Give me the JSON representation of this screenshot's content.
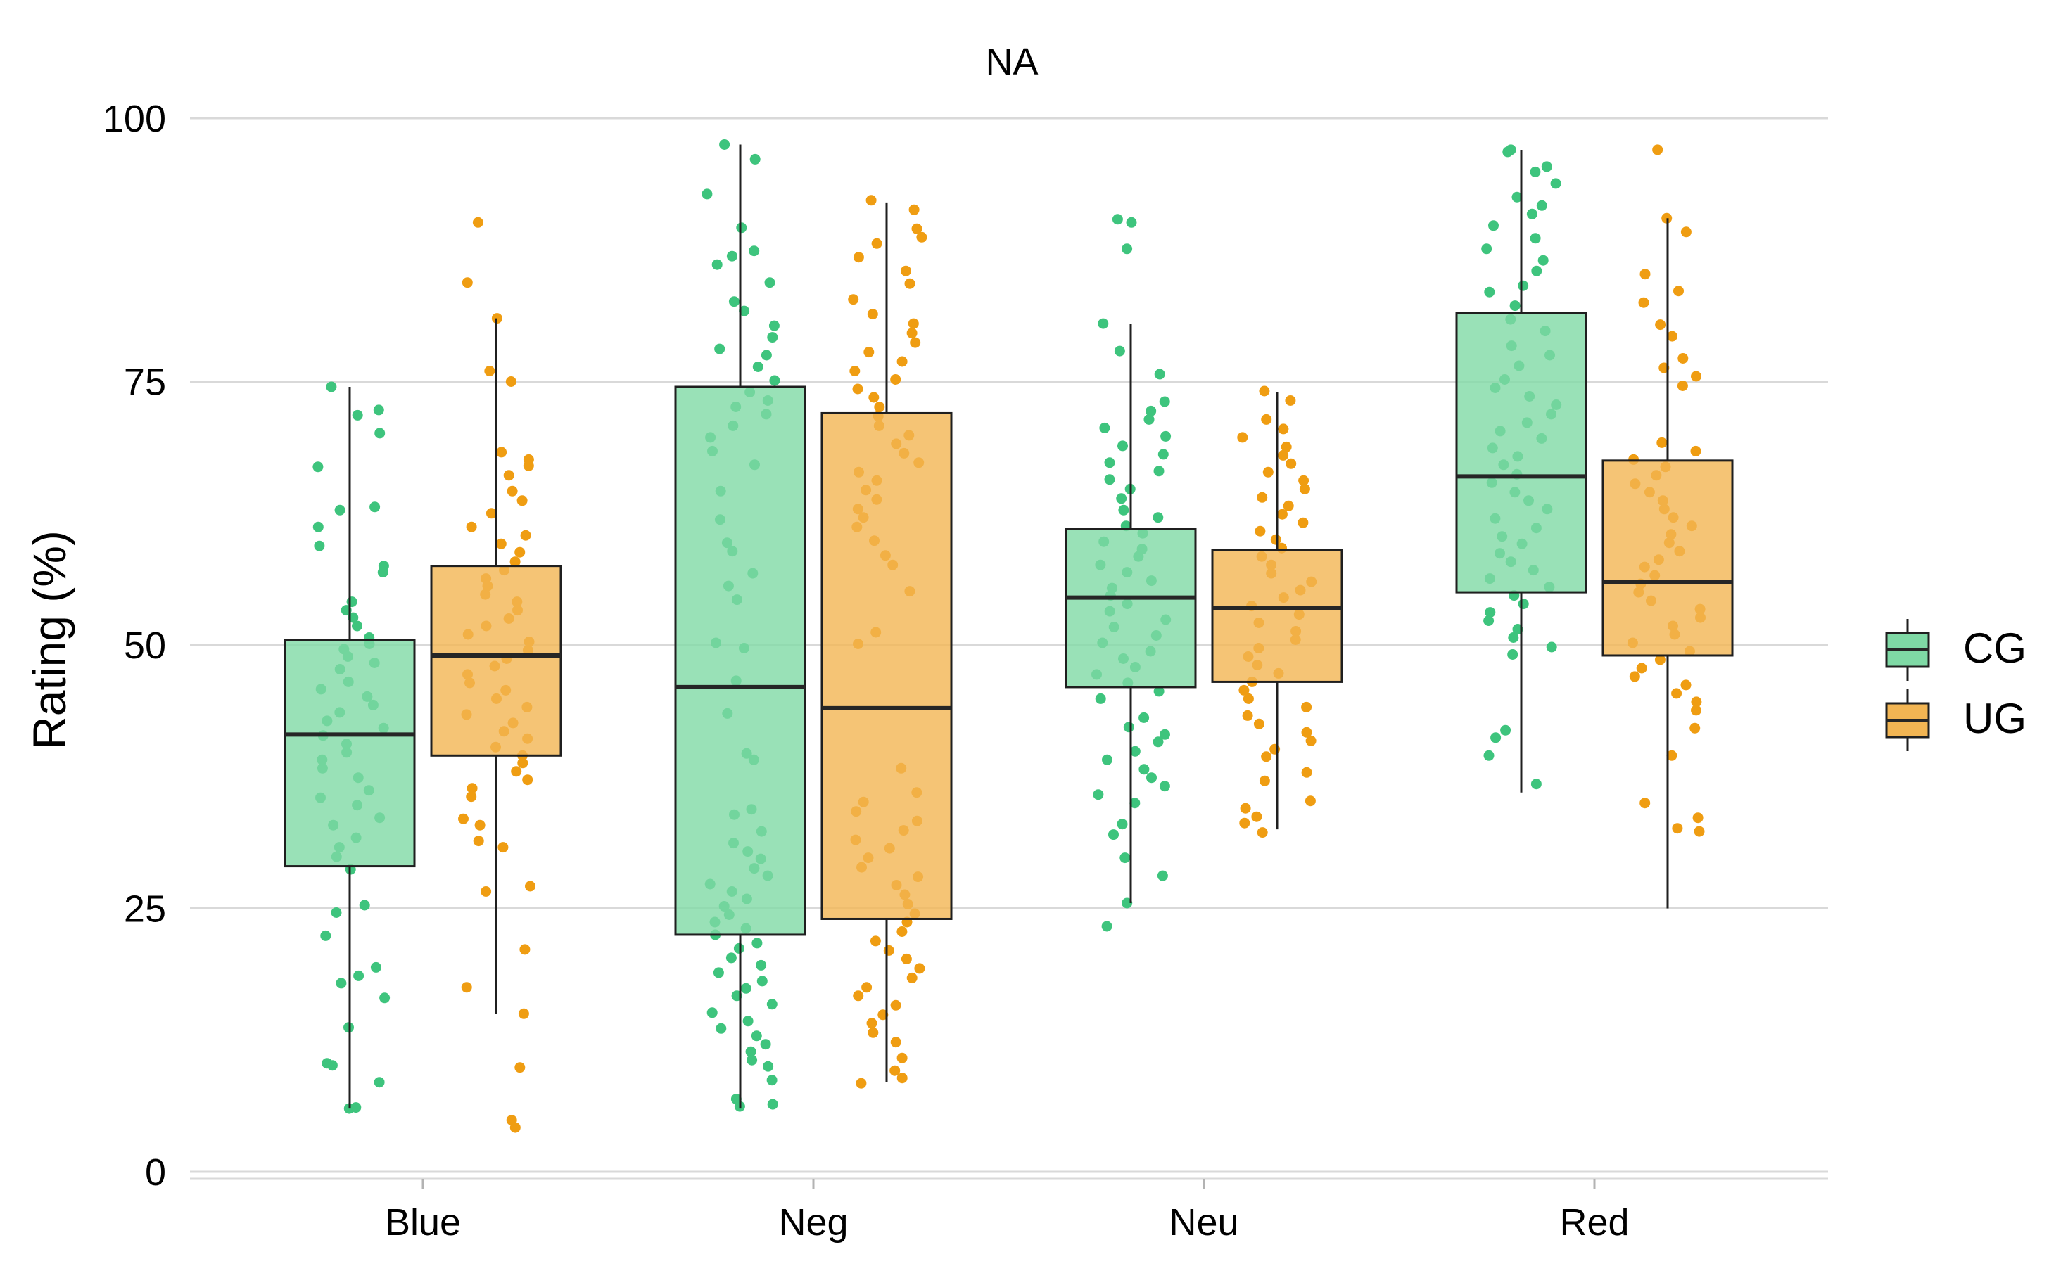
{
  "chart_data": {
    "type": "boxplot",
    "title": "NA",
    "xlabel": "",
    "ylabel": "Rating (%)",
    "ylim": [
      0,
      100
    ],
    "yticks": [
      0,
      25,
      50,
      75,
      100
    ],
    "grid": true,
    "legend_position": "right",
    "categories": [
      "Blue",
      "Neg",
      "Neu",
      "Red"
    ],
    "series": [
      {
        "name": "CG",
        "fill": "#7fd9a5",
        "point_color": "#3ec47d",
        "boxes": [
          {
            "category": "Blue",
            "min": 6,
            "q1": 29,
            "median": 41.5,
            "q3": 50.5,
            "max": 74.5
          },
          {
            "category": "Neg",
            "min": 6,
            "q1": 22.5,
            "median": 46,
            "q3": 74.5,
            "max": 97.5
          },
          {
            "category": "Neu",
            "min": 25.5,
            "q1": 46,
            "median": 54.5,
            "q3": 61,
            "max": 80.5
          },
          {
            "category": "Red",
            "min": 36,
            "q1": 55,
            "median": 66,
            "q3": 81.5,
            "max": 97
          }
        ],
        "points": [
          {
            "category": "Blue",
            "values": [
              74.5,
              72.3,
              71.8,
              70.1,
              66.9,
              63.1,
              62.8,
              61.2,
              59.4,
              57.5,
              56.9,
              54.1,
              53.3,
              52.6,
              51.8,
              50.7,
              50.1,
              49.6,
              48.9,
              48.3,
              47.7,
              46.5,
              45.8,
              45.1,
              44.3,
              43.6,
              42.8,
              42.1,
              41.4,
              40.6,
              39.8,
              39.1,
              38.3,
              37.4,
              36.2,
              35.5,
              34.8,
              33.6,
              32.9,
              31.7,
              30.8,
              29.9,
              28.7,
              25.3,
              24.6,
              22.4,
              19.4,
              18.6,
              17.9,
              16.5,
              13.7,
              10.3,
              10.1,
              8.5,
              6.1,
              6.0
            ]
          },
          {
            "category": "Neg",
            "values": [
              97.5,
              96.1,
              92.8,
              89.6,
              87.4,
              86.9,
              86.1,
              84.4,
              82.6,
              81.7,
              80.3,
              79.2,
              78.1,
              77.5,
              76.4,
              75.1,
              74.0,
              73.2,
              72.6,
              71.9,
              70.8,
              69.7,
              68.4,
              67.1,
              64.6,
              61.9,
              59.7,
              58.9,
              56.8,
              55.6,
              54.3,
              50.2,
              49.7,
              46.6,
              43.5,
              39.7,
              39.1,
              34.4,
              33.9,
              32.3,
              31.2,
              30.4,
              29.7,
              28.8,
              28.1,
              27.3,
              26.6,
              25.9,
              25.2,
              24.4,
              23.7,
              23.1,
              22.5,
              21.7,
              21.2,
              20.3,
              19.6,
              18.9,
              18.1,
              17.4,
              16.7,
              15.9,
              15.1,
              14.3,
              13.6,
              12.9,
              12.1,
              11.4,
              10.6,
              10.0,
              8.7,
              6.9,
              6.4,
              6.2
            ]
          },
          {
            "category": "Neu",
            "values": [
              90.4,
              90.1,
              87.6,
              80.5,
              77.9,
              75.7,
              73.1,
              72.2,
              71.4,
              70.6,
              69.8,
              68.9,
              68.1,
              67.3,
              66.5,
              65.7,
              64.8,
              63.9,
              62.8,
              62.1,
              61.3,
              60.6,
              59.8,
              59.1,
              58.4,
              57.6,
              56.9,
              56.1,
              55.4,
              54.7,
              53.9,
              53.2,
              52.4,
              51.7,
              50.9,
              50.2,
              49.4,
              48.7,
              47.9,
              47.2,
              46.4,
              45.6,
              44.9,
              43.1,
              42.2,
              41.5,
              40.8,
              39.9,
              39.1,
              38.2,
              37.4,
              36.6,
              35.8,
              35.0,
              33.0,
              32.0,
              29.8,
              28.1,
              25.5,
              23.3
            ]
          },
          {
            "category": "Red",
            "values": [
              97.0,
              96.8,
              95.4,
              94.9,
              93.8,
              92.5,
              91.7,
              90.9,
              89.8,
              88.6,
              87.6,
              86.5,
              85.5,
              84.1,
              83.5,
              82.2,
              80.9,
              79.8,
              78.4,
              77.5,
              76.5,
              75.2,
              74.4,
              73.6,
              72.8,
              71.9,
              71.1,
              70.3,
              69.6,
              68.7,
              67.9,
              67.1,
              66.2,
              65.4,
              64.5,
              63.7,
              62.9,
              62.0,
              61.1,
              60.3,
              59.6,
              58.7,
              57.9,
              57.1,
              56.3,
              55.5,
              54.7,
              53.9,
              53.1,
              52.3,
              51.5,
              50.7,
              49.8,
              49.1,
              41.9,
              41.2,
              39.5,
              36.8
            ]
          }
        ]
      },
      {
        "name": "UG",
        "fill": "#f2b553",
        "point_color": "#ef9d12",
        "boxes": [
          {
            "category": "Blue",
            "min": 15,
            "q1": 39.5,
            "median": 49,
            "q3": 57.5,
            "max": 81
          },
          {
            "category": "Neg",
            "min": 8.5,
            "q1": 24,
            "median": 44,
            "q3": 72,
            "max": 92
          },
          {
            "category": "Neu",
            "min": 32.5,
            "q1": 46.5,
            "median": 53.5,
            "q3": 59,
            "max": 74
          },
          {
            "category": "Red",
            "min": 25,
            "q1": 49,
            "median": 56,
            "q3": 67.5,
            "max": 90.5
          }
        ]
      }
    ],
    "ug_points": [
      {
        "category": "Blue",
        "values": [
          90.1,
          84.4,
          81.0,
          76.0,
          75.0,
          68.3,
          67.6,
          67.0,
          66.1,
          64.6,
          63.7,
          62.5,
          61.2,
          60.4,
          59.6,
          58.8,
          57.9,
          57.1,
          56.3,
          55.6,
          54.8,
          54.1,
          53.3,
          52.5,
          51.8,
          51.0,
          50.3,
          49.5,
          48.7,
          48.0,
          47.2,
          46.4,
          45.7,
          44.9,
          44.1,
          43.4,
          42.6,
          41.8,
          41.1,
          40.3,
          39.5,
          38.8,
          38.0,
          37.2,
          36.4,
          35.6,
          33.5,
          32.9,
          31.4,
          30.8,
          27.1,
          26.6,
          21.1,
          17.5,
          15.0,
          9.9,
          4.9,
          4.2
        ]
      },
      {
        "category": "Neg",
        "values": [
          92.2,
          91.3,
          89.5,
          88.7,
          88.1,
          86.8,
          85.5,
          84.3,
          82.8,
          81.4,
          80.5,
          79.6,
          78.7,
          77.8,
          76.9,
          76.0,
          75.2,
          74.3,
          73.5,
          72.6,
          71.7,
          70.8,
          69.9,
          69.1,
          68.2,
          67.3,
          66.4,
          65.6,
          64.7,
          63.8,
          62.9,
          62.1,
          61.2,
          59.9,
          58.5,
          57.6,
          55.1,
          51.2,
          50.1,
          38.3,
          36.0,
          35.1,
          34.2,
          33.3,
          32.4,
          31.5,
          30.7,
          29.8,
          28.9,
          28.0,
          27.2,
          26.3,
          25.4,
          24.5,
          23.7,
          22.8,
          21.9,
          21.0,
          20.2,
          19.3,
          18.4,
          17.5,
          16.7,
          15.8,
          14.9,
          14.1,
          13.2,
          12.3,
          10.8,
          9.6,
          8.9,
          8.4
        ]
      },
      {
        "category": "Neu",
        "values": [
          74.1,
          73.2,
          71.4,
          70.5,
          69.7,
          68.8,
          68.0,
          67.2,
          66.4,
          65.6,
          64.8,
          64.0,
          63.2,
          62.4,
          61.6,
          60.8,
          60.0,
          59.2,
          58.4,
          57.6,
          56.8,
          56.0,
          55.2,
          54.5,
          53.7,
          52.9,
          52.1,
          51.3,
          50.5,
          49.7,
          48.9,
          48.1,
          47.3,
          46.5,
          45.7,
          44.9,
          44.1,
          43.3,
          42.5,
          41.7,
          40.9,
          40.1,
          39.4,
          37.9,
          37.1,
          35.2,
          34.5,
          33.7,
          33.1,
          32.2
        ]
      },
      {
        "category": "Red",
        "values": [
          97.0,
          90.5,
          89.2,
          85.2,
          83.6,
          82.5,
          80.4,
          79.3,
          77.2,
          76.3,
          75.5,
          74.6,
          69.2,
          68.4,
          67.6,
          66.9,
          66.1,
          65.3,
          64.5,
          63.7,
          62.9,
          62.1,
          61.3,
          60.5,
          59.7,
          58.9,
          58.1,
          57.4,
          56.6,
          55.8,
          55.0,
          54.2,
          53.4,
          52.6,
          51.8,
          51.0,
          50.2,
          49.4,
          48.6,
          47.8,
          47.0,
          46.2,
          45.4,
          44.6,
          43.8,
          42.1,
          39.5,
          35.0,
          33.6,
          32.6,
          32.3
        ]
      }
    ]
  }
}
